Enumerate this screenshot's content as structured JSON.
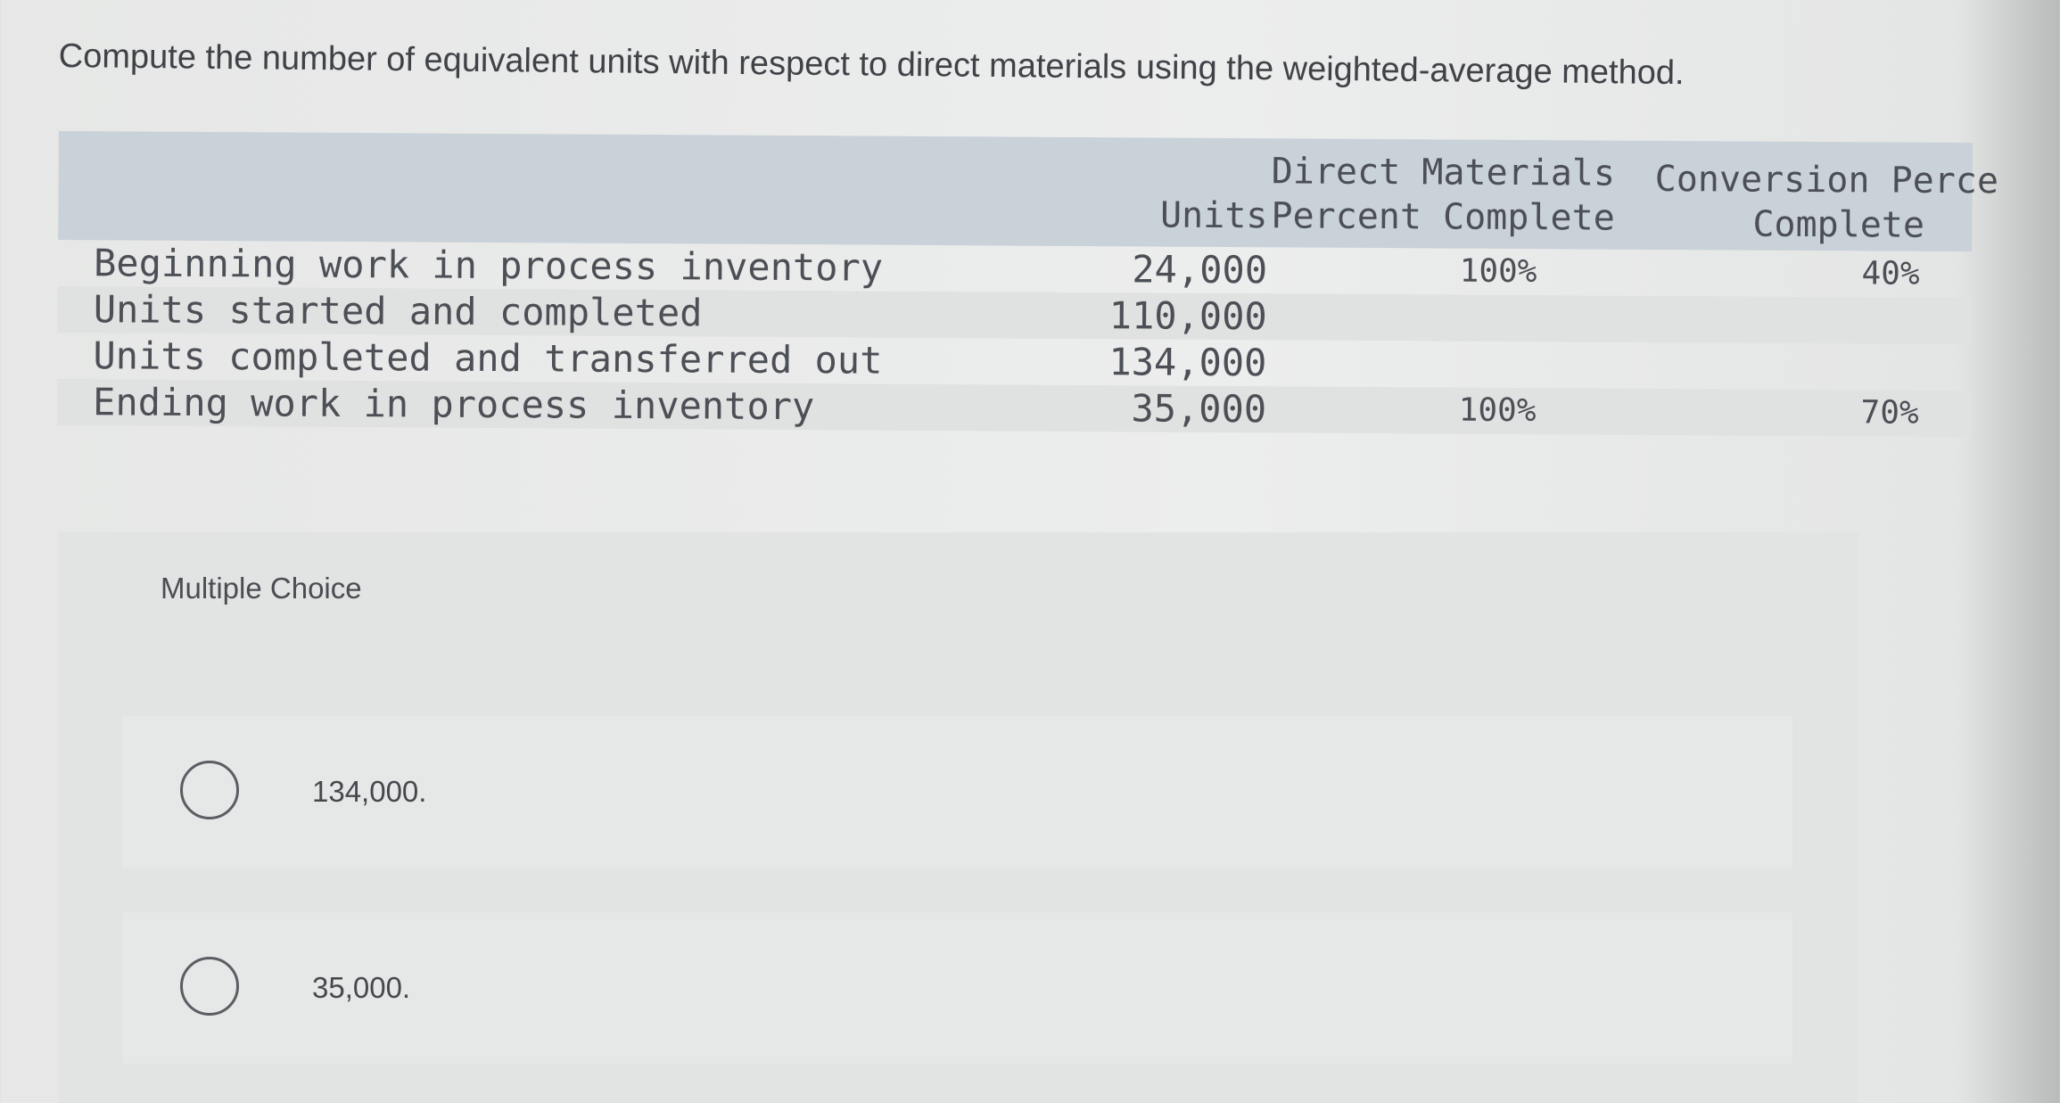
{
  "question": "Compute the number of equivalent units with respect to direct materials using the weighted-average method.",
  "table": {
    "headers": {
      "units": "Units",
      "dm_line1": "Direct Materials",
      "dm_line2": "Percent Complete",
      "cv_line1": "Conversion Perce",
      "cv_line2": "Complete"
    },
    "rows": [
      {
        "label": "Beginning work in process inventory",
        "units": "24,000",
        "dm": "100%",
        "cv": "40%"
      },
      {
        "label": "Units started and completed",
        "units": "110,000",
        "dm": "",
        "cv": ""
      },
      {
        "label": "Units completed and transferred out",
        "units": "134,000",
        "dm": "",
        "cv": ""
      },
      {
        "label": "Ending work in process inventory",
        "units": "35,000",
        "dm": "100%",
        "cv": "70%"
      }
    ]
  },
  "multiple_choice": {
    "title": "Multiple Choice",
    "options": [
      {
        "label": "134,000.",
        "selected": false
      },
      {
        "label": "35,000.",
        "selected": false
      }
    ]
  }
}
